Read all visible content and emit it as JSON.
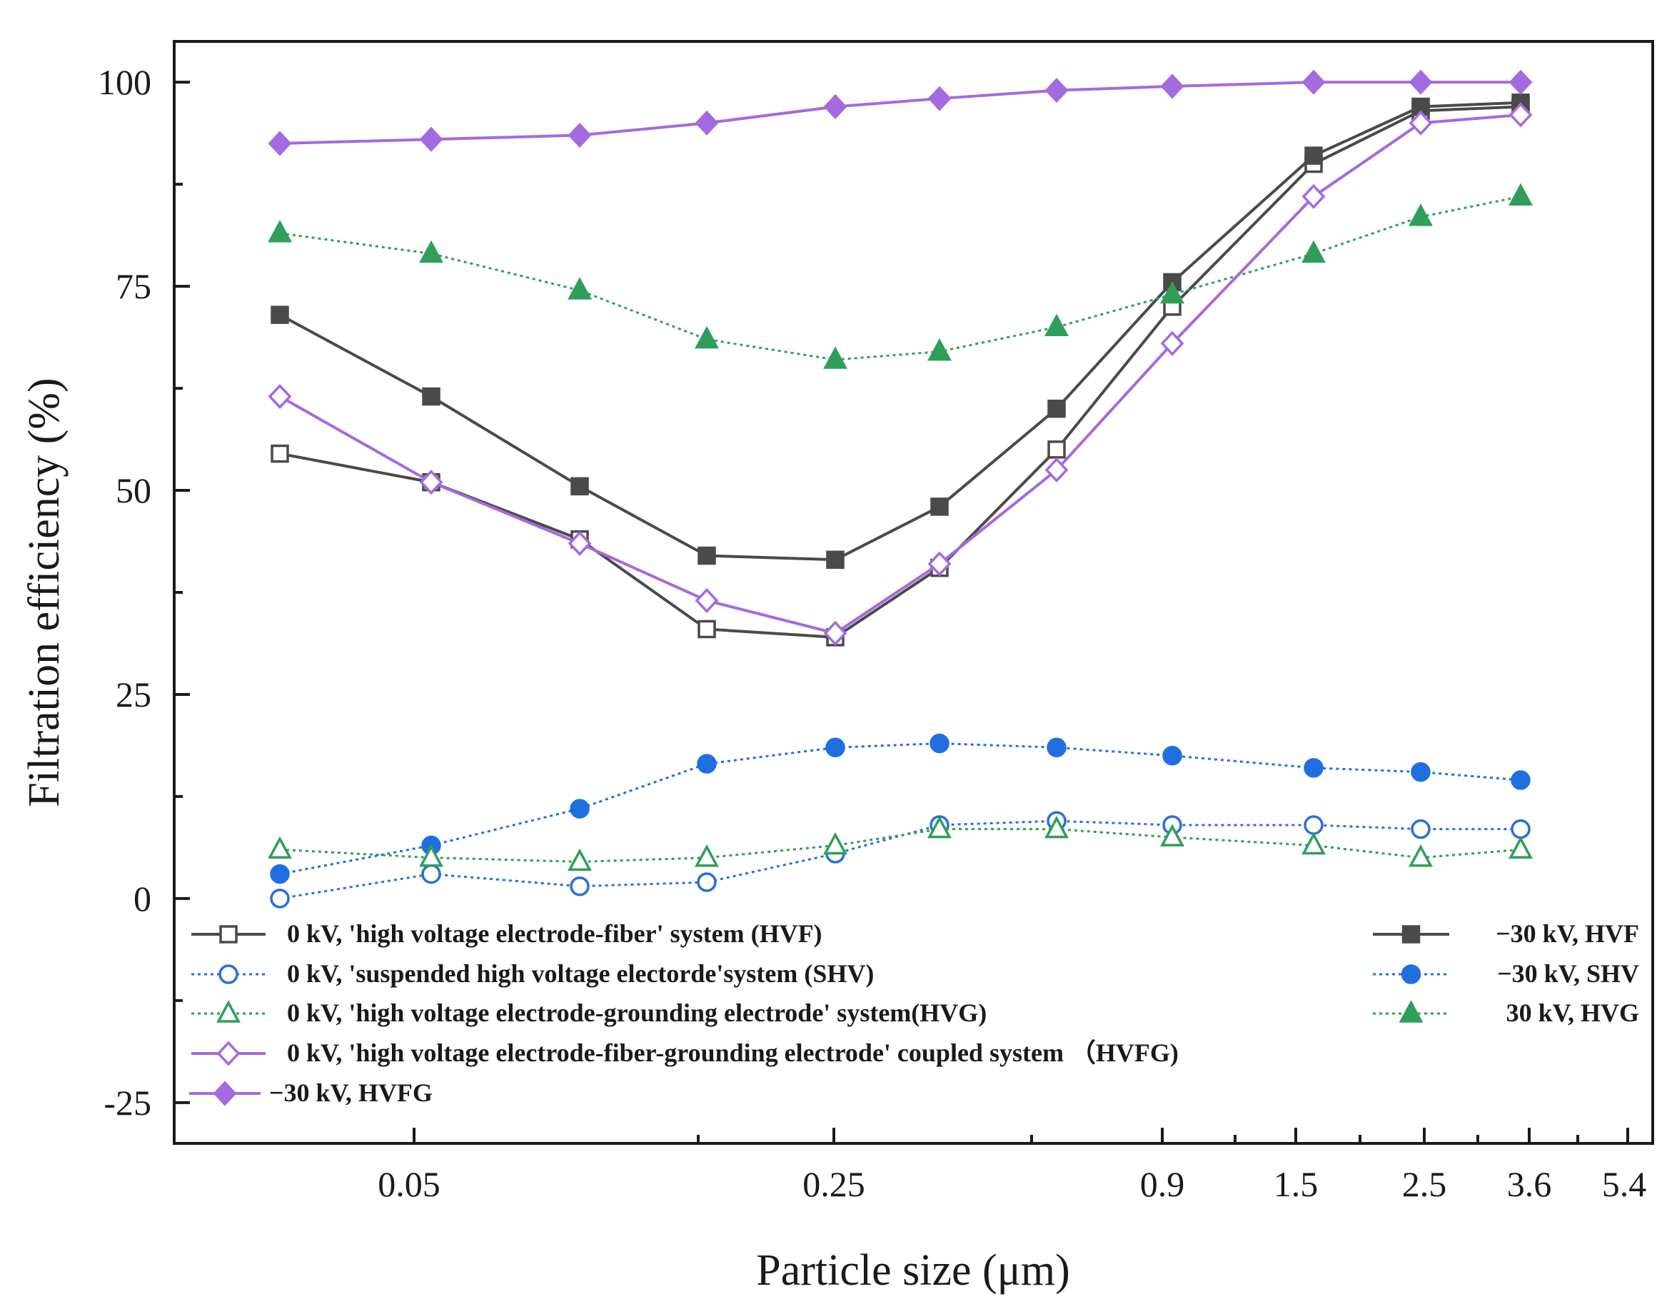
{
  "chart_data": {
    "type": "line",
    "title": "",
    "xlabel": "Particle size (μm)",
    "ylabel": "Filtration efficiency (%)",
    "ylim": [
      -30,
      105
    ],
    "yticks": [
      -25,
      0,
      25,
      50,
      75,
      100
    ],
    "xtick_labels": [
      "0.05",
      "0.25",
      "0.9",
      "1.5",
      "2.5",
      "3.6",
      "5.4"
    ],
    "x_points": [
      "0.02",
      "0.05",
      "0.1",
      "0.15",
      "0.25",
      "0.35",
      "0.5",
      "0.9",
      "1.5",
      "2.5",
      "3.6"
    ],
    "grid": false,
    "series": [
      {
        "name": "0 kV, 'high voltage electrode-fiber' system  (HVF)",
        "color": "#4a4a4a",
        "marker": "square",
        "filled": false,
        "dashed": false,
        "values": [
          54.5,
          51,
          44,
          33,
          32,
          40.5,
          55,
          72.5,
          90,
          96.5,
          97
        ]
      },
      {
        "name": "−30 kV, HVF",
        "color": "#4a4a4a",
        "marker": "square",
        "filled": true,
        "dashed": false,
        "values": [
          71.5,
          61.5,
          50.5,
          42,
          41.5,
          48,
          60,
          75.5,
          91,
          97,
          97.5
        ]
      },
      {
        "name": "0 kV, 'suspended high voltage electorde'system  (SHV)",
        "color": "#2a6fdb",
        "marker": "circle",
        "filled": false,
        "dashed": true,
        "values": [
          0,
          3,
          1.5,
          2,
          5.5,
          9,
          9.5,
          9,
          9,
          8.5,
          8.5
        ]
      },
      {
        "name": "−30 kV, SHV",
        "color": "#1f6fe0",
        "marker": "circle",
        "filled": true,
        "dashed": true,
        "values": [
          3,
          6.5,
          11,
          16.5,
          18.5,
          19,
          18.5,
          17.5,
          16,
          15.5,
          14.5
        ]
      },
      {
        "name": "0 kV, 'high voltage electrode-grounding electrode' system(HVG)",
        "color": "#2f9e5a",
        "marker": "triangle",
        "filled": false,
        "dashed": true,
        "values": [
          6,
          5,
          4.5,
          5,
          6.5,
          8.5,
          8.5,
          7.5,
          6.5,
          5,
          6
        ]
      },
      {
        "name": " 30 kV, HVG",
        "color": "#2f9e5a",
        "marker": "triangle",
        "filled": true,
        "dashed": true,
        "values": [
          81.5,
          79,
          74.5,
          68.5,
          66,
          67,
          70,
          74,
          79,
          83.5,
          86
        ]
      },
      {
        "name": "0 kV, 'high voltage electrode-fiber-grounding electrode' coupled system  （HVFG)",
        "color": "#a46ae0",
        "marker": "diamond",
        "filled": false,
        "dashed": false,
        "values": [
          61.5,
          51,
          43.5,
          36.5,
          32.5,
          41,
          52.5,
          68,
          86,
          95,
          96
        ]
      },
      {
        "name": "−30 kV, HVFG",
        "color": "#a46ae0",
        "marker": "diamond",
        "filled": true,
        "dashed": false,
        "values": [
          92.5,
          93,
          93.5,
          95,
          97,
          98,
          99,
          99.5,
          100,
          100,
          100
        ]
      }
    ]
  }
}
